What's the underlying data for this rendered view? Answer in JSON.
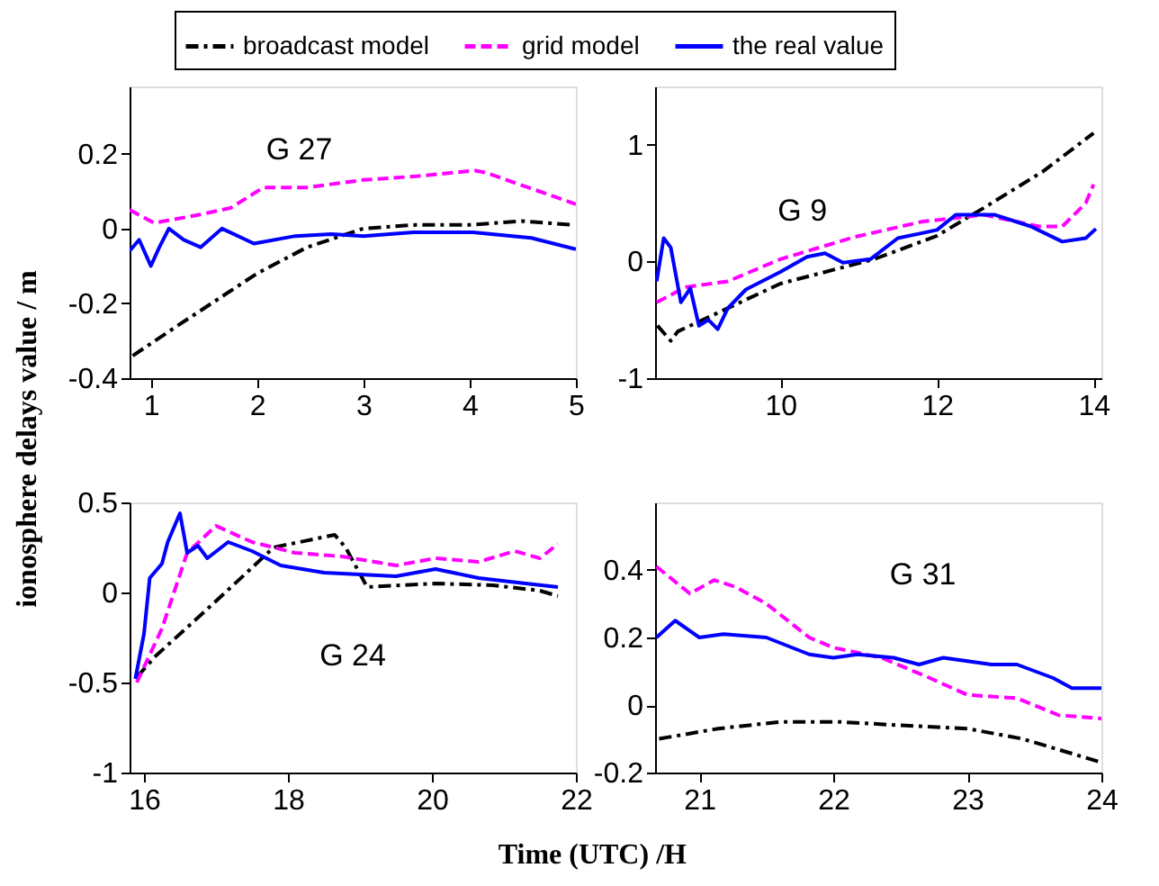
{
  "chart_data": [
    {
      "type": "line",
      "title": "G 27",
      "ylabel": "ionosphere delays value / m",
      "legend": "top",
      "xlim": [
        0.8,
        5
      ],
      "xticks": [
        1,
        2,
        3,
        4,
        5
      ],
      "ylim": [
        -0.4,
        0.38
      ],
      "yticks": [
        -0.4,
        -0.2,
        0,
        0.2
      ],
      "grid": false,
      "series": [
        {
          "name": "broadcast model",
          "color": "#000000",
          "line_style": "dashdot",
          "x": [
            0.83,
            1.25,
            2,
            2.47,
            3,
            3.5,
            4,
            4.5,
            4.95
          ],
          "values": [
            -0.34,
            -0.26,
            -0.12,
            -0.05,
            0.0,
            0.01,
            0.01,
            0.02,
            0.01
          ]
        },
        {
          "name": "grid model",
          "color": "#ff00ff",
          "line_style": "dashed",
          "x": [
            0.8,
            1.03,
            1.42,
            1.75,
            2.06,
            2.47,
            3,
            3.5,
            4.05,
            4.15,
            4.55,
            5
          ],
          "values": [
            0.05,
            0.015,
            0.035,
            0.055,
            0.11,
            0.11,
            0.13,
            0.14,
            0.155,
            0.15,
            0.11,
            0.065
          ]
        },
        {
          "name": "the real value",
          "color": "#0000ff",
          "line_style": "solid",
          "x": [
            0.8,
            0.89,
            1,
            1.08,
            1.17,
            1.31,
            1.47,
            1.67,
            1.97,
            2.36,
            2.7,
            3,
            3.47,
            4.03,
            4.58,
            5
          ],
          "values": [
            -0.06,
            -0.03,
            -0.1,
            -0.05,
            0,
            -0.03,
            -0.05,
            0,
            -0.04,
            -0.02,
            -0.015,
            -0.02,
            -0.01,
            -0.01,
            -0.025,
            -0.055
          ]
        }
      ]
    },
    {
      "type": "line",
      "title": "G 9",
      "xlim": [
        8.4,
        14.1
      ],
      "xticks": [
        10,
        12,
        14
      ],
      "ylim": [
        -1,
        1.5
      ],
      "yticks": [
        -1,
        0,
        1
      ],
      "grid": false,
      "series": [
        {
          "color": "#000000",
          "line_style": "dashdot",
          "x": [
            8.43,
            8.6,
            8.69,
            10,
            11.2,
            12,
            12.6,
            13.35,
            14
          ],
          "values": [
            -0.55,
            -0.68,
            -0.6,
            -0.19,
            0.02,
            0.22,
            0.46,
            0.77,
            1.1
          ]
        },
        {
          "color": "#ff00ff",
          "line_style": "dashed",
          "x": [
            8.42,
            8.79,
            9.33,
            10,
            10.95,
            11.8,
            12.6,
            13.3,
            13.6,
            13.9,
            14
          ],
          "values": [
            -0.35,
            -0.22,
            -0.17,
            0.02,
            0.21,
            0.34,
            0.4,
            0.3,
            0.3,
            0.5,
            0.66
          ]
        },
        {
          "color": "#0000ff",
          "line_style": "solid",
          "x": [
            8.42,
            8.51,
            8.6,
            8.73,
            8.85,
            8.96,
            9.08,
            9.2,
            9.33,
            9.56,
            10,
            10.34,
            10.57,
            10.8,
            11.15,
            11.5,
            12,
            12.24,
            12.74,
            13.2,
            13.6,
            13.9,
            14.03
          ],
          "values": [
            -0.17,
            0.2,
            0.12,
            -0.35,
            -0.23,
            -0.55,
            -0.5,
            -0.58,
            -0.4,
            -0.24,
            -0.09,
            0.04,
            0.07,
            -0.01,
            0.02,
            0.2,
            0.27,
            0.4,
            0.4,
            0.3,
            0.17,
            0.2,
            0.28
          ]
        }
      ]
    },
    {
      "type": "line",
      "title": "G 24",
      "xlabel": "Time (UTC) /H",
      "xlim": [
        15.8,
        22
      ],
      "xticks": [
        16,
        18,
        20,
        22
      ],
      "ylim": [
        -1,
        0.5
      ],
      "yticks": [
        -1,
        -0.5,
        0,
        0.5
      ],
      "grid": false,
      "series": [
        {
          "color": "#000000",
          "line_style": "dashdot",
          "x": [
            15.9,
            16.17,
            16.83,
            17.4,
            17.8,
            18.65,
            18.8,
            19.1,
            20.05,
            20.85,
            21.5,
            21.75
          ],
          "values": [
            -0.47,
            -0.35,
            -0.11,
            0.1,
            0.25,
            0.32,
            0.25,
            0.03,
            0.05,
            0.04,
            0.01,
            -0.02
          ]
        },
        {
          "color": "#ff00ff",
          "line_style": "dashed",
          "x": [
            15.9,
            16.25,
            16.6,
            17,
            17.5,
            18.1,
            18.75,
            19.5,
            20.05,
            20.65,
            21.15,
            21.5,
            21.75
          ],
          "values": [
            -0.5,
            -0.2,
            0.22,
            0.37,
            0.28,
            0.22,
            0.2,
            0.15,
            0.19,
            0.17,
            0.23,
            0.19,
            0.27
          ]
        },
        {
          "color": "#0000ff",
          "line_style": "solid",
          "x": [
            15.88,
            16,
            16.08,
            16.25,
            16.33,
            16.5,
            16.6,
            16.75,
            16.88,
            17.17,
            17.5,
            17.9,
            18.5,
            19,
            19.5,
            20.05,
            20.65,
            21.3,
            21.75
          ],
          "values": [
            -0.48,
            -0.23,
            0.08,
            0.16,
            0.28,
            0.44,
            0.22,
            0.26,
            0.19,
            0.28,
            0.23,
            0.15,
            0.11,
            0.1,
            0.09,
            0.13,
            0.08,
            0.05,
            0.03
          ]
        }
      ]
    },
    {
      "type": "line",
      "title": "G 31",
      "xlim": [
        20.67,
        24
      ],
      "xticks": [
        21,
        22,
        23,
        24
      ],
      "ylim": [
        -0.2,
        0.6
      ],
      "yticks": [
        -0.2,
        0,
        0.2,
        0.4
      ],
      "grid": false,
      "series": [
        {
          "color": "#000000",
          "line_style": "dashdot",
          "x": [
            20.7,
            21.14,
            21.6,
            22.05,
            22.5,
            23,
            23.41,
            24
          ],
          "values": [
            -0.1,
            -0.07,
            -0.05,
            -0.05,
            -0.06,
            -0.07,
            -0.1,
            -0.17
          ]
        },
        {
          "color": "#ff00ff",
          "line_style": "dashed",
          "x": [
            20.68,
            20.93,
            21.11,
            21.27,
            21.5,
            21.82,
            22,
            22.36,
            22.72,
            23,
            23.37,
            23.68,
            24
          ],
          "values": [
            0.41,
            0.33,
            0.37,
            0.35,
            0.3,
            0.2,
            0.17,
            0.14,
            0.08,
            0.03,
            0.02,
            -0.03,
            -0.04
          ]
        },
        {
          "color": "#0000ff",
          "line_style": "solid",
          "x": [
            20.68,
            20.82,
            21,
            21.18,
            21.5,
            21.82,
            22,
            22.18,
            22.45,
            22.64,
            22.82,
            23.18,
            23.37,
            23.64,
            23.78,
            24
          ],
          "values": [
            0.2,
            0.25,
            0.2,
            0.21,
            0.2,
            0.15,
            0.14,
            0.15,
            0.14,
            0.12,
            0.14,
            0.12,
            0.12,
            0.08,
            0.05,
            0.05
          ]
        }
      ]
    }
  ]
}
